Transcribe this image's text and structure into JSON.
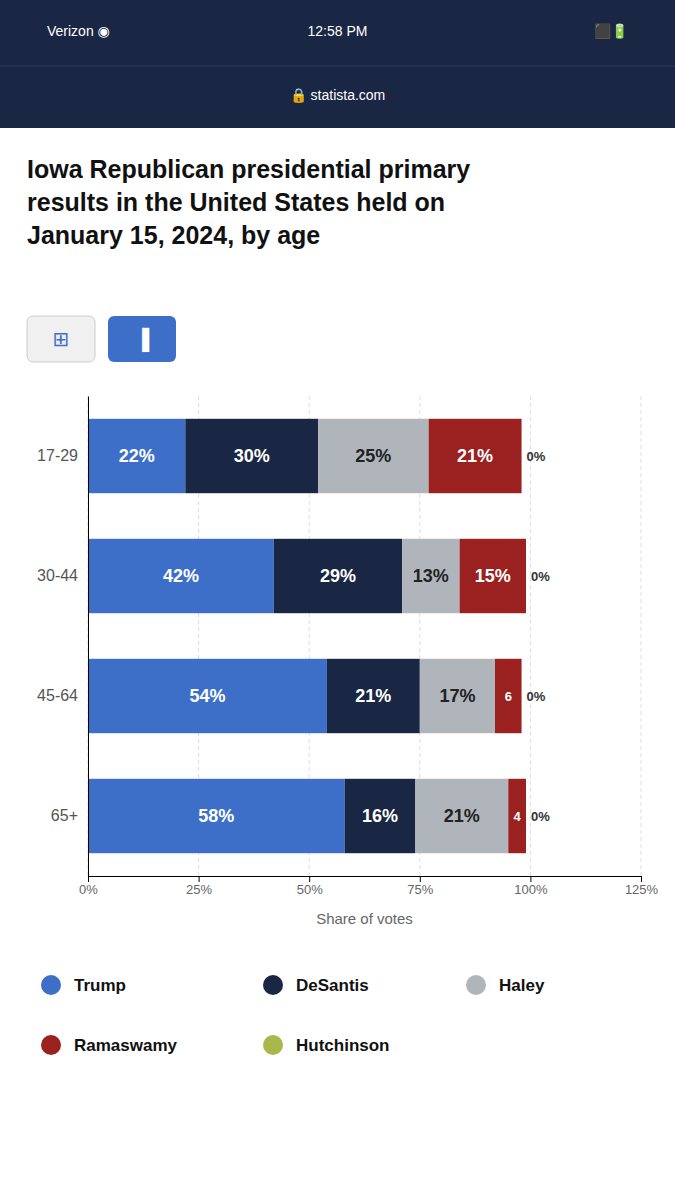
{
  "chart_data": {
    "type": "bar",
    "orientation": "horizontal",
    "stacked": true,
    "title": "Iowa Republican presidential primary\nresults in the United States held on\nJanuary 15, 2024, by age",
    "annotations": [
      "Verizon  ◉",
      "12:58 PM",
      "⬛🔋",
      "🔒 statista.com",
      "⊞",
      "▐"
    ],
    "xlabel": "Share of votes",
    "categories": [
      "17-29",
      "30-44",
      "45-64",
      "65+"
    ],
    "series": [
      {
        "name": "Trump",
        "color": "#3d6fc9",
        "values": [
          22,
          42,
          54,
          58
        ],
        "value_labels": [
          "22%",
          "42%",
          "54%",
          "58%"
        ]
      },
      {
        "name": "DeSantis",
        "color": "#1a2744",
        "values": [
          30,
          29,
          21,
          16
        ],
        "value_labels": [
          "30%",
          "29%",
          "21%",
          "16%"
        ]
      },
      {
        "name": "Haley",
        "color": "#b0b5bc",
        "values": [
          25,
          13,
          17,
          21
        ],
        "value_labels": [
          "25%",
          "13%",
          "17%",
          "21%"
        ]
      },
      {
        "name": "Ramaswamy",
        "color": "#9b2020",
        "values": [
          21,
          15,
          6,
          4
        ],
        "value_labels": [
          "21%",
          "15%",
          "6",
          "4"
        ]
      },
      {
        "name": "Hutchinson",
        "color": "#a8b84b",
        "values": [
          0,
          0,
          0,
          0
        ],
        "value_labels": [
          "0%",
          "0%",
          "0%",
          "0%"
        ]
      }
    ],
    "xlim": [
      0,
      125
    ],
    "xticks": [
      {
        "value": 0,
        "label": "0%"
      },
      {
        "value": 25,
        "label": "25%"
      },
      {
        "value": 50,
        "label": "50%"
      },
      {
        "value": 75,
        "label": "75%"
      },
      {
        "value": 100,
        "label": "100%"
      },
      {
        "value": 125,
        "label": "125%"
      }
    ],
    "grid": true,
    "legend": "bottom",
    "data_labels": true
  }
}
